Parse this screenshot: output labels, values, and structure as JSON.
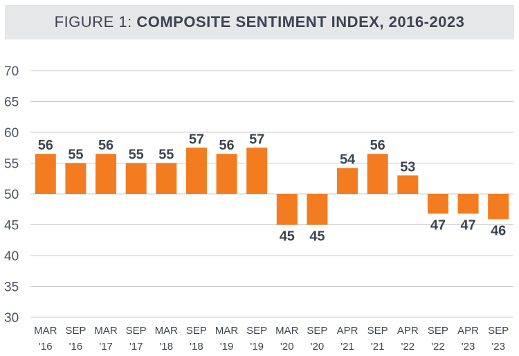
{
  "title_prefix": "FIGURE 1:",
  "title_main": "COMPOSITE SENTIMENT INDEX, 2016-2023",
  "colors": {
    "bar": "#f47c20",
    "grid": "#c8c9cb",
    "text": "#3d4451",
    "title_bg": "#e6e7e8"
  },
  "chart_data": {
    "type": "bar",
    "title": "FIGURE 1: COMPOSITE SENTIMENT INDEX, 2016-2023",
    "baseline": 50,
    "ylim": [
      30,
      70
    ],
    "yticks": [
      30,
      35,
      40,
      45,
      50,
      55,
      60,
      65,
      70
    ],
    "grid": true,
    "categories": [
      [
        "MAR",
        "'16"
      ],
      [
        "SEP",
        "'16"
      ],
      [
        "MAR",
        "'17"
      ],
      [
        "SEP",
        "'17"
      ],
      [
        "MAR",
        "'18"
      ],
      [
        "SEP",
        "'18"
      ],
      [
        "MAR",
        "'19"
      ],
      [
        "SEP",
        "'19"
      ],
      [
        "MAR",
        "'20"
      ],
      [
        "SEP",
        "'20"
      ],
      [
        "APR",
        "'21"
      ],
      [
        "SEP",
        "'21"
      ],
      [
        "APR",
        "'22"
      ],
      [
        "SEP",
        "'22"
      ],
      [
        "APR",
        "'23"
      ],
      [
        "SEP",
        "'23"
      ]
    ],
    "values": [
      56.5,
      55,
      56.5,
      55,
      55,
      57.5,
      56.5,
      57.5,
      45,
      45,
      54.2,
      56.5,
      53,
      46.8,
      46.8,
      45.9
    ],
    "labels": [
      "56",
      "55",
      "56",
      "55",
      "55",
      "57",
      "56",
      "57",
      "45",
      "45",
      "54",
      "56",
      "53",
      "47",
      "47",
      "46"
    ]
  }
}
